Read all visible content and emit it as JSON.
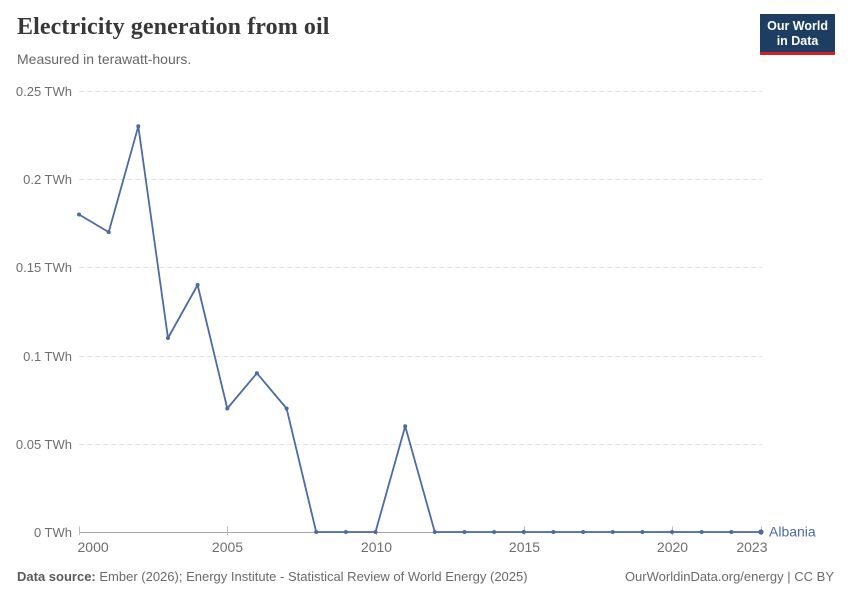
{
  "header": {
    "title": "Electricity generation from oil",
    "subtitle": "Measured in terawatt-hours.",
    "logo": {
      "line1": "Our World",
      "line2": "in Data"
    }
  },
  "chart_data": {
    "type": "line",
    "title": "Electricity generation from oil",
    "subtitle": "Measured in terawatt-hours.",
    "unit": "TWh",
    "xlabel": "",
    "ylabel": "",
    "xlim": [
      2000,
      2023
    ],
    "ylim": [
      0,
      0.25
    ],
    "grid": "horizontal-dashed",
    "legend_position": "end-of-line-label",
    "xticks": [
      2000,
      2005,
      2010,
      2015,
      2020,
      2023
    ],
    "yticks": [
      {
        "value": 0,
        "label": "0 TWh"
      },
      {
        "value": 0.05,
        "label": "0.05 TWh"
      },
      {
        "value": 0.1,
        "label": "0.1 TWh"
      },
      {
        "value": 0.15,
        "label": "0.15 TWh"
      },
      {
        "value": 0.2,
        "label": "0.2 TWh"
      },
      {
        "value": 0.25,
        "label": "0.25 TWh"
      }
    ],
    "series": [
      {
        "name": "Albania",
        "color": "#4c6ba3",
        "x": [
          2000,
          2001,
          2002,
          2003,
          2004,
          2005,
          2006,
          2007,
          2008,
          2009,
          2010,
          2011,
          2012,
          2013,
          2014,
          2015,
          2016,
          2017,
          2018,
          2019,
          2020,
          2021,
          2022,
          2023
        ],
        "values": [
          0.18,
          0.17,
          0.23,
          0.11,
          0.14,
          0.07,
          0.09,
          0.07,
          0,
          0,
          0,
          0.06,
          0,
          0,
          0,
          0,
          0,
          0,
          0,
          0,
          0,
          0,
          0,
          0
        ]
      }
    ]
  },
  "footer": {
    "source_label": "Data source:",
    "source_text": " Ember (2026); Energy Institute - Statistical Review of World Energy (2025)",
    "link": "OurWorldinData.org/energy | CC BY"
  },
  "colors": {
    "line": "#4c6ba3",
    "grid": "#e3e3e3",
    "axis": "#a5a5a5",
    "tick": "#bdbdbd",
    "tick_label": "#6e6e6e",
    "logo_bg": "#1d3d63",
    "logo_bar": "#d21e26"
  }
}
